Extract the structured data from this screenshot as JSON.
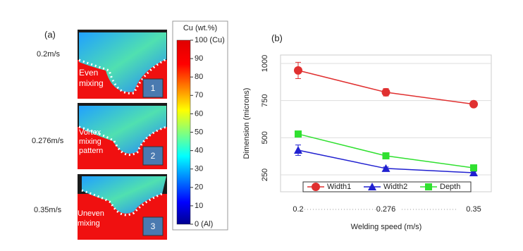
{
  "figure_a": {
    "label": "(a)",
    "speeds": [
      "0.2m/s",
      "0.276m/s",
      "0.35m/s"
    ],
    "panels": [
      {
        "text": "Even mixing",
        "number": "1"
      },
      {
        "text": "Vortex mixing pattern",
        "number": "2"
      },
      {
        "text": "Uneven mixing",
        "number": "3"
      }
    ],
    "colorbar": {
      "title": "Cu (wt.%)",
      "lim": [
        0,
        100
      ],
      "ticks": [
        {
          "value": 100,
          "label": "100 (Cu)"
        },
        90,
        80,
        70,
        60,
        50,
        40,
        30,
        20,
        10,
        {
          "value": 0,
          "label": "0 (Al)"
        }
      ]
    }
  },
  "chart_data": {
    "type": "line",
    "panel_label": "(b)",
    "x_label": "Welding speed (m/s)",
    "y_label": "Dimension (microns)",
    "categories": [
      "0.2",
      "0.276",
      "0.35"
    ],
    "series": [
      {
        "name": "Width1",
        "color": "#e03030",
        "marker": "circle",
        "values": [
          953,
          806,
          726
        ],
        "errors": [
          55,
          25,
          20
        ]
      },
      {
        "name": "Width2",
        "color": "#2020d0",
        "marker": "triangle",
        "values": [
          416,
          293,
          264
        ],
        "errors": [
          35,
          10,
          8
        ]
      },
      {
        "name": "Depth",
        "color": "#30e030",
        "marker": "square",
        "values": [
          525,
          378,
          297
        ],
        "errors": [
          10,
          12,
          8
        ]
      }
    ],
    "ylim": [
      136,
      1057
    ],
    "yticks": [
      250,
      500,
      750,
      1000
    ],
    "grid": true,
    "legend": "bottom"
  }
}
